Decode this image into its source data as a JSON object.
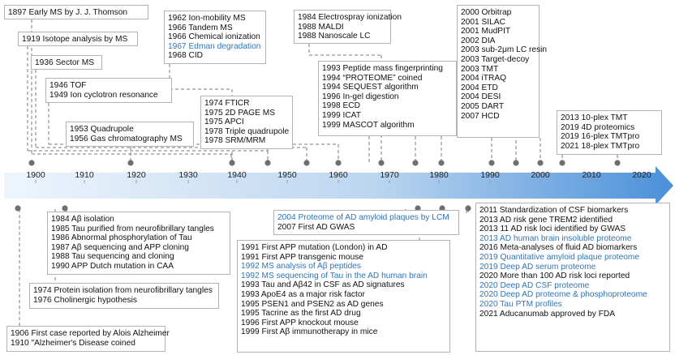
{
  "colors": {
    "accent_blue": "#2e75b6",
    "arrow_light": "#e9f2fb",
    "arrow_dark": "#4a90d9",
    "connector": "#7a7a7a",
    "dot": "#6f6f6f",
    "box_border": "#b3b3b3"
  },
  "axis": {
    "ticks": [
      "1900",
      "1910",
      "1920",
      "1930",
      "1940",
      "1950",
      "1960",
      "1970",
      "1980",
      "1990",
      "2000",
      "2010",
      "2020"
    ]
  },
  "top_boxes": [
    {
      "id": "t1897",
      "lines": [
        {
          "text": "1897 Early MS by J. J. Thomson"
        }
      ]
    },
    {
      "id": "t1919",
      "lines": [
        {
          "text": "1919 Isotope analysis by MS"
        }
      ]
    },
    {
      "id": "t1936",
      "lines": [
        {
          "text": "1936 Sector MS"
        }
      ]
    },
    {
      "id": "t1946",
      "lines": [
        {
          "text": "1946 TOF"
        },
        {
          "text": "1949 Ion cyclotron resonance"
        }
      ]
    },
    {
      "id": "t1953",
      "lines": [
        {
          "text": "1953 Quadrupole"
        },
        {
          "text": "1956 Gas chromatography MS"
        }
      ]
    },
    {
      "id": "t1962",
      "lines": [
        {
          "text": "1962 Ion-mobility MS"
        },
        {
          "text": "1966 Tandem MS"
        },
        {
          "text": "1966 Chemical ionization"
        },
        {
          "text": "1967 Edman degradation",
          "blue": true
        },
        {
          "text": "1968 CID"
        }
      ]
    },
    {
      "id": "t1974",
      "lines": [
        {
          "text": "1974 FTICR"
        },
        {
          "text": "1975 2D PAGE MS"
        },
        {
          "text": "1975 APCI"
        },
        {
          "text": "1978 Triple quadrupole"
        },
        {
          "text": "1978 SRM/MRM"
        }
      ]
    },
    {
      "id": "t1984",
      "lines": [
        {
          "text": "1984 Electrospray ionization"
        },
        {
          "text": "1988 MALDI"
        },
        {
          "text": "1988 Nanoscale LC"
        }
      ]
    },
    {
      "id": "t1993",
      "lines": [
        {
          "text": "1993 Peptide mass fingerprinting"
        },
        {
          "text": "1994 “PROTEOME” coined"
        },
        {
          "text": "1994 SEQUEST algorithm"
        },
        {
          "text": "1996 In-gel digestion"
        },
        {
          "text": "1998 ECD"
        },
        {
          "text": "1999 ICAT"
        },
        {
          "text": "1999 MASCOT algorithm"
        }
      ]
    },
    {
      "id": "t2000",
      "lines": [
        {
          "text": "2000 Orbitrap"
        },
        {
          "text": "2001 SILAC"
        },
        {
          "text": "2001 MudPIT"
        },
        {
          "text": "2002 DIA"
        },
        {
          "text": "2003 sub-2μm LC resin"
        },
        {
          "text": "2003 Target-decoy"
        },
        {
          "text": "2003 TMT"
        },
        {
          "text": "2004 iTRAQ"
        },
        {
          "text": "2004 ETD"
        },
        {
          "text": "2004 DESI"
        },
        {
          "text": "2005 DART"
        },
        {
          "text": "2007 HCD"
        }
      ]
    },
    {
      "id": "t2013",
      "lines": [
        {
          "text": "2013 10-plex TMT"
        },
        {
          "text": "2019 4D proteomics"
        },
        {
          "text": "2019 16-plex TMTpro"
        },
        {
          "text": "2021 18-plex TMTpro"
        }
      ]
    }
  ],
  "bottom_boxes": [
    {
      "id": "b1984",
      "lines": [
        {
          "text": "1984 Aβ isolation"
        },
        {
          "text": "1985 Tau purified from neurofibrillary tangles"
        },
        {
          "text": "1986 Abnormal phosphorylation of Tau"
        },
        {
          "text": "1987 Aβ sequencing and APP cloning"
        },
        {
          "text": "1988 Tau sequencing and cloning"
        },
        {
          "text": "1990 APP Dutch mutation in CAA"
        }
      ]
    },
    {
      "id": "b1974",
      "lines": [
        {
          "text": "1974 Protein isolation from neurofibrillary tangles"
        },
        {
          "text": "1976 Cholinergic hypothesis"
        }
      ]
    },
    {
      "id": "b1906",
      "lines": [
        {
          "text": "1906 First case reported by Alois Alzheimer"
        },
        {
          "text": "1910 \"Alzheimer's Disease coined"
        }
      ]
    },
    {
      "id": "b2004",
      "lines": [
        {
          "text": "2004 Proteome of AD amyloid plaques by LCM",
          "blue": true
        },
        {
          "text": "2007 First AD GWAS"
        }
      ]
    },
    {
      "id": "b1991",
      "lines": [
        {
          "text": "1991 First APP mutation (London) in AD"
        },
        {
          "text": "1991 First APP transgenic mouse"
        },
        {
          "text": "1992 MS analysis of Aβ peptides",
          "blue": true
        },
        {
          "text": "1992 MS sequencing of Tau in the AD human brain",
          "blue": true
        },
        {
          "text": "1993 Tau and Aβ42 in CSF as AD signatures"
        },
        {
          "text": "1993 ApoE4 as a major risk factor"
        },
        {
          "text": "1995 PSEN1 and PSEN2 as AD genes"
        },
        {
          "text": "1995 Tacrine as the first AD drug"
        },
        {
          "text": "1996 First APP knockout mouse"
        },
        {
          "text": "1999 First Aβ immunotherapy in mice"
        }
      ]
    },
    {
      "id": "b2011",
      "lines": [
        {
          "text": "2011 Standardization of CSF biomarkers"
        },
        {
          "text": "2013 AD risk gene TREM2 identified"
        },
        {
          "text": "2013 11 AD risk loci identified by GWAS"
        },
        {
          "text": "2013 AD human brain insoluble proteome",
          "blue": true
        },
        {
          "text": "2016 Meta-analyses of fluid AD biomarkers"
        },
        {
          "text": "2019 Quantitative amyloid plaque proteome",
          "blue": true
        },
        {
          "text": "2019 Deep AD serum proteome",
          "blue": true
        },
        {
          "text": "2020 More than 100 AD risk loci reported"
        },
        {
          "text": "2020 Deep AD CSF proteome",
          "blue": true
        },
        {
          "text": "2020 Deep AD proteome & phosphoproteome",
          "blue": true
        },
        {
          "text": "2020 Tau PTM profiles",
          "blue": true
        },
        {
          "text": "2021 Aducanumab approved by FDA"
        }
      ]
    }
  ]
}
